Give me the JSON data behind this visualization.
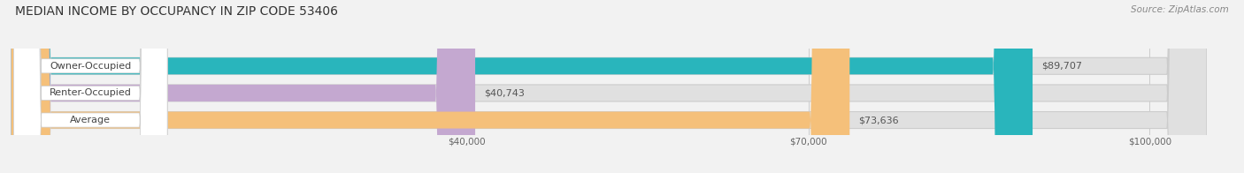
{
  "title": "MEDIAN INCOME BY OCCUPANCY IN ZIP CODE 53406",
  "source": "Source: ZipAtlas.com",
  "categories": [
    "Owner-Occupied",
    "Renter-Occupied",
    "Average"
  ],
  "values": [
    89707,
    40743,
    73636
  ],
  "labels": [
    "$89,707",
    "$40,743",
    "$73,636"
  ],
  "bar_colors": [
    "#29b5bc",
    "#c4a8d0",
    "#f5c07a"
  ],
  "xlim_data": [
    0,
    105000
  ],
  "xlim_display": [
    0,
    105000
  ],
  "xticks": [
    40000,
    70000,
    100000
  ],
  "xticklabels": [
    "$40,000",
    "$70,000",
    "$100,000"
  ],
  "background_color": "#f2f2f2",
  "bar_background_color": "#e0e0e0",
  "title_fontsize": 10,
  "source_fontsize": 7.5,
  "label_fontsize": 8,
  "bar_height": 0.62
}
